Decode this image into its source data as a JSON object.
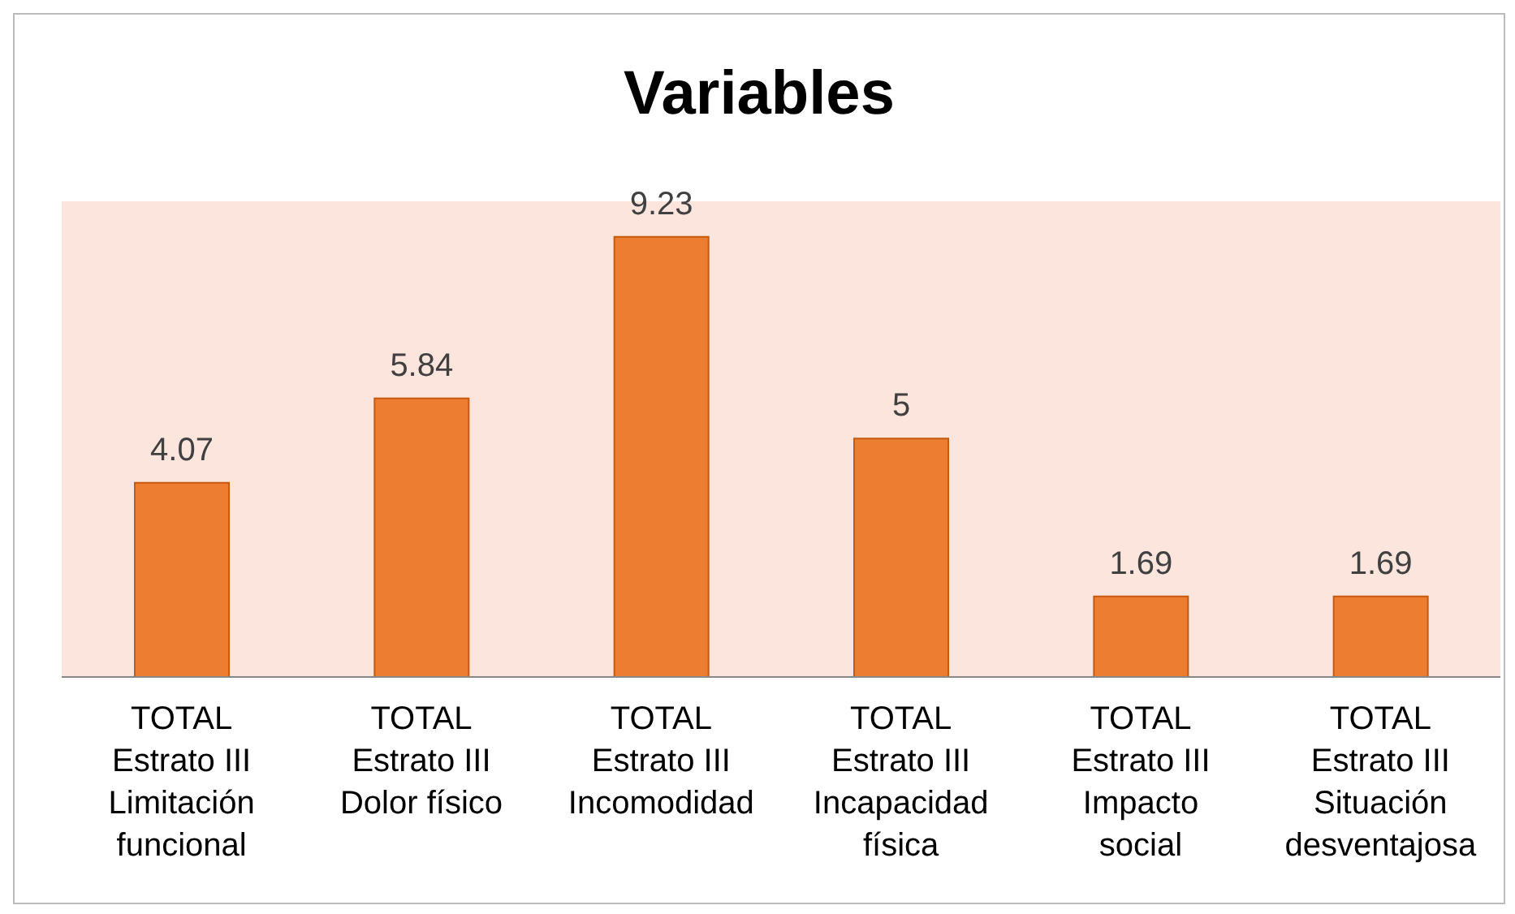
{
  "chart_data": {
    "type": "bar",
    "title": "Variables",
    "categories": [
      "TOTAL Estrato III Limitación funcional",
      "TOTAL Estrato III Dolor físico",
      "TOTAL Estrato III Incomodidad",
      "TOTAL Estrato III Incapacidad física",
      "TOTAL Estrato III Impacto social",
      "TOTAL Estrato III Situación desventajosa"
    ],
    "values": [
      4.07,
      5.84,
      9.23,
      5,
      1.69,
      1.69
    ],
    "color": "#ed7d31",
    "data_labels": true
  }
}
